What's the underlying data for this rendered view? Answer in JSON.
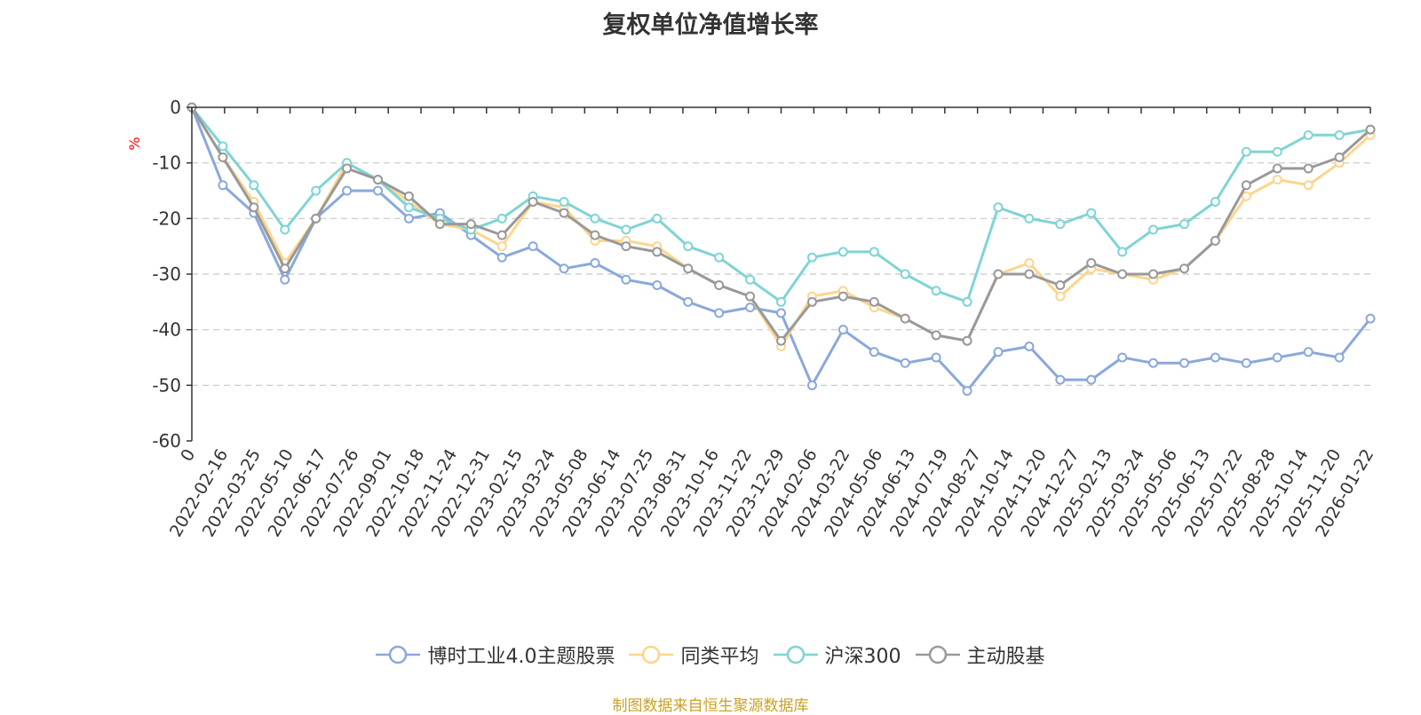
{
  "chart_data": {
    "type": "line",
    "title": "复权单位净值增长率",
    "ylabel": "%",
    "ylim": [
      -60,
      0
    ],
    "yticks": [
      0,
      -10,
      -20,
      -30,
      -40,
      -50,
      -60
    ],
    "x_tick_labels": [
      "0",
      "2022-02-16",
      "2022-03-25",
      "2022-05-10",
      "2022-06-17",
      "2022-07-26",
      "2022-09-01",
      "2022-10-18",
      "2022-11-24",
      "2022-12-31",
      "2023-02-15",
      "2023-03-24",
      "2023-05-08",
      "2023-06-14",
      "2023-07-25",
      "2023-08-31",
      "2023-10-16",
      "2023-11-22",
      "2023-12-29",
      "2024-02-06",
      "2024-03-22",
      "2024-05-06",
      "2024-06-13",
      "2024-07-19",
      "2024-08-27",
      "2024-10-14",
      "2024-11-20",
      "2024-12-27",
      "2025-02-13",
      "2025-03-24",
      "2025-05-06",
      "2025-06-13",
      "2025-07-22",
      "2025-08-28",
      "2025-10-14",
      "2025-11-20",
      "2026-01-22"
    ],
    "series": [
      {
        "name": "博时工业4.0主题股票",
        "color": "#8aa8db",
        "values": [
          0,
          -14,
          -19,
          -31,
          -20,
          -15,
          -15,
          -20,
          -19,
          -23,
          -27,
          -25,
          -29,
          -28,
          -31,
          -32,
          -35,
          -37,
          -36,
          -37,
          -50,
          -40,
          -44,
          -46,
          -45,
          -51,
          -44,
          -43,
          -49,
          -49,
          -45,
          -46,
          -46,
          -45,
          -46,
          -45,
          -44,
          -45,
          -38
        ]
      },
      {
        "name": "同类平均",
        "color": "#fdd58c",
        "values": [
          0,
          -9,
          -17,
          -28,
          -20,
          -10,
          -13,
          -17,
          -21,
          -22,
          -25,
          -17,
          -18,
          -24,
          -24,
          -25,
          -29,
          -32,
          -34,
          -43,
          -34,
          -33,
          -36,
          -38,
          -41,
          -42,
          -30,
          -28,
          -34,
          -29,
          -30,
          -31,
          -29,
          -24,
          -16,
          -13,
          -14,
          -10,
          -5
        ]
      },
      {
        "name": "沪深300",
        "color": "#7fd4d4",
        "values": [
          0,
          -7,
          -14,
          -22,
          -15,
          -10,
          -13,
          -18,
          -20,
          -22,
          -20,
          -16,
          -17,
          -20,
          -22,
          -20,
          -25,
          -27,
          -31,
          -35,
          -27,
          -26,
          -26,
          -30,
          -33,
          -35,
          -18,
          -20,
          -21,
          -19,
          -26,
          -22,
          -21,
          -17,
          -8,
          -8,
          -5,
          -5,
          -4
        ]
      },
      {
        "name": "主动股基",
        "color": "#999999",
        "values": [
          0,
          -9,
          -18,
          -29,
          -20,
          -11,
          -13,
          -16,
          -21,
          -21,
          -23,
          -17,
          -19,
          -23,
          -25,
          -26,
          -29,
          -32,
          -34,
          -42,
          -35,
          -34,
          -35,
          -38,
          -41,
          -42,
          -30,
          -30,
          -32,
          -28,
          -30,
          -30,
          -29,
          -24,
          -14,
          -11,
          -11,
          -9,
          -4
        ]
      }
    ]
  },
  "legend_items": [
    "博时工业4.0主题股票",
    "同类平均",
    "沪深300",
    "主动股基"
  ],
  "source_note": "制图数据来自恒生聚源数据库"
}
